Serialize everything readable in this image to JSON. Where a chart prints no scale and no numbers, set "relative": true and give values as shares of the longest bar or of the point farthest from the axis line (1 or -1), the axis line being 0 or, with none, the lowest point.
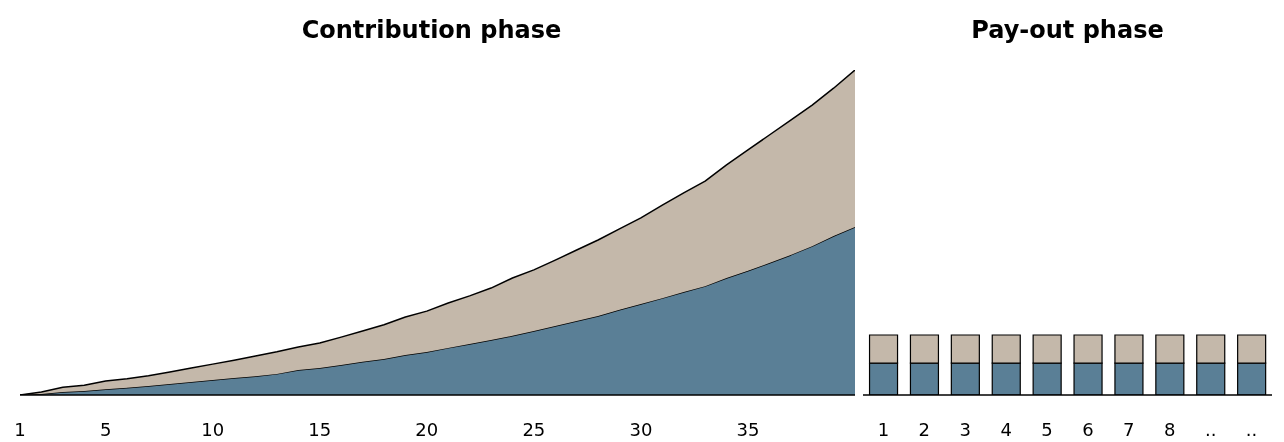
{
  "chart_data": [
    {
      "type": "area",
      "title": "Contribution phase",
      "relative": true,
      "stacked": true,
      "x": [
        1,
        2,
        3,
        4,
        5,
        6,
        7,
        8,
        9,
        10,
        11,
        12,
        13,
        14,
        15,
        16,
        17,
        18,
        19,
        20,
        21,
        22,
        23,
        24,
        25,
        26,
        27,
        28,
        29,
        30,
        31,
        32,
        33,
        34,
        35,
        36,
        37,
        38,
        39,
        40
      ],
      "xlim": [
        1,
        40
      ],
      "xticks": [
        1,
        5,
        10,
        15,
        20,
        25,
        30,
        35
      ],
      "series": [
        {
          "color": "#5a7f96",
          "values": [
            0,
            0.003,
            0.009,
            0.012,
            0.018,
            0.022,
            0.028,
            0.034,
            0.04,
            0.046,
            0.052,
            0.058,
            0.065,
            0.077,
            0.083,
            0.092,
            0.102,
            0.111,
            0.123,
            0.132,
            0.145,
            0.157,
            0.169,
            0.182,
            0.197,
            0.212,
            0.228,
            0.243,
            0.262,
            0.28,
            0.298,
            0.317,
            0.335,
            0.36,
            0.382,
            0.406,
            0.431,
            0.458,
            0.489,
            0.517
          ]
        },
        {
          "color": "#c4b8aa",
          "values": [
            0,
            0.006,
            0.015,
            0.018,
            0.025,
            0.028,
            0.031,
            0.037,
            0.043,
            0.049,
            0.055,
            0.062,
            0.068,
            0.071,
            0.077,
            0.086,
            0.095,
            0.105,
            0.117,
            0.126,
            0.138,
            0.148,
            0.16,
            0.178,
            0.188,
            0.203,
            0.218,
            0.234,
            0.249,
            0.265,
            0.286,
            0.305,
            0.323,
            0.348,
            0.372,
            0.394,
            0.415,
            0.434,
            0.455,
            0.483
          ]
        }
      ]
    },
    {
      "type": "bar",
      "title": "Pay-out phase",
      "relative": true,
      "stacked": true,
      "categories": [
        "1",
        "2",
        "3",
        "4",
        "5",
        "6",
        "7",
        "8",
        "..",
        ".."
      ],
      "series": [
        {
          "color": "#5a7f96",
          "values": [
            0.53,
            0.53,
            0.53,
            0.53,
            0.53,
            0.53,
            0.53,
            0.53,
            0.53,
            0.53
          ]
        },
        {
          "color": "#c4b8aa",
          "values": [
            0.47,
            0.47,
            0.47,
            0.47,
            0.47,
            0.47,
            0.47,
            0.47,
            0.47,
            0.47
          ]
        }
      ]
    }
  ]
}
